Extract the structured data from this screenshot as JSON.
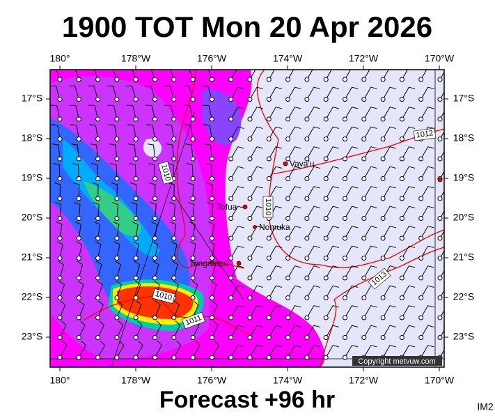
{
  "title": "1900 TOT Mon 20 Apr 2026",
  "footer": "Forecast +96 hr",
  "corner_label": "IM2",
  "copyright": "Copyright metvuw.com",
  "longitude_labels": [
    "180°",
    "178°W",
    "176°W",
    "174°W",
    "172°W",
    "170°W"
  ],
  "latitude_labels": [
    "17°S",
    "18°S",
    "19°S",
    "20°S",
    "21°S",
    "22°S",
    "23°S"
  ],
  "places": [
    {
      "label": "Vava'u"
    },
    {
      "label": "Tofua"
    },
    {
      "label": "Nomuka"
    },
    {
      "label": "Tongatapu"
    }
  ],
  "isobar_labels": [
    "1010",
    "1010",
    "1012",
    "1013",
    "1010",
    "1011"
  ]
}
